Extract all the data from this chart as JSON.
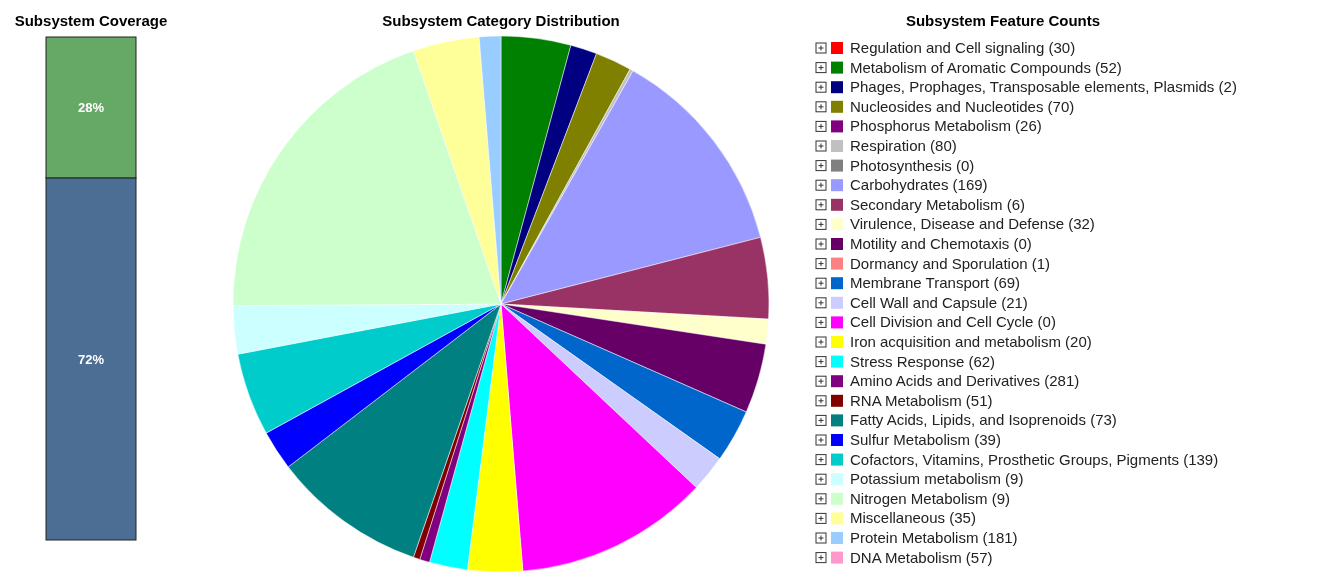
{
  "chart_data": [
    {
      "type": "bar",
      "title": "Subsystem Coverage",
      "categories": [
        null
      ],
      "stacked": true,
      "ylim": [
        0,
        100
      ],
      "series": [
        {
          "color": "#4d6e94",
          "values": [
            72
          ],
          "value_labels": [
            "72%"
          ]
        },
        {
          "color": "#66a866",
          "values": [
            28
          ],
          "value_labels": [
            "28%"
          ]
        }
      ]
    },
    {
      "type": "pie",
      "title": "Subsystem Category Distribution",
      "legend_title": "Subsystem Feature Counts",
      "legend": "right",
      "categories": [
        "Regulation and Cell signaling (30)",
        "Metabolism of Aromatic Compounds (52)",
        "Phages, Prophages, Transposable elements, Plasmids (2)",
        "Nucleosides and Nucleotides (70)",
        "Phosphorus Metabolism (26)",
        "Respiration (80)",
        "Photosynthesis (0)",
        "Carbohydrates (169)",
        "Secondary Metabolism (6)",
        "Virulence, Disease and Defense (32)",
        "Motility and Chemotaxis (0)",
        "Dormancy and Sporulation (1)",
        "Membrane Transport (69)",
        "Cell Wall and Capsule (21)",
        "Cell Division and Cell Cycle (0)",
        "Iron acquisition and metabolism (20)",
        "Stress Response (62)",
        "Amino Acids and Derivatives (281)",
        "RNA Metabolism (51)",
        "Fatty Acids, Lipids, and Isoprenoids (73)",
        "Sulfur Metabolism (39)",
        "Cofactors, Vitamins, Prosthetic Groups, Pigments (139)",
        "Potassium metabolism (9)",
        "Nitrogen Metabolism (9)",
        "Miscellaneous (35)",
        "Protein Metabolism (181)",
        "DNA Metabolism (57)"
      ],
      "values": [
        0,
        4.2,
        1.6,
        2.2,
        0,
        0.2,
        0,
        12.8,
        4.9,
        1.5,
        4.2,
        0,
        3.2,
        2.2,
        11.7,
        3.3,
        2.3,
        0.6,
        0.4,
        9.3,
        2.4,
        5.0,
        2.9,
        19.8,
        4.0,
        1.3,
        0
      ],
      "colors": [
        "#ff0000",
        "#008000",
        "#000080",
        "#808000",
        "#800080",
        "#c0c0c0",
        "#808080",
        "#9999ff",
        "#993366",
        "#ffffcc",
        "#660066",
        "#ff8080",
        "#0066cc",
        "#ccccff",
        "#ff00ff",
        "#ffff00",
        "#00ffff",
        "#800080",
        "#800000",
        "#008080",
        "#0000ff",
        "#00cccc",
        "#ccffff",
        "#ccffcc",
        "#ffff99",
        "#99ccff",
        "#ff99cc"
      ]
    }
  ]
}
